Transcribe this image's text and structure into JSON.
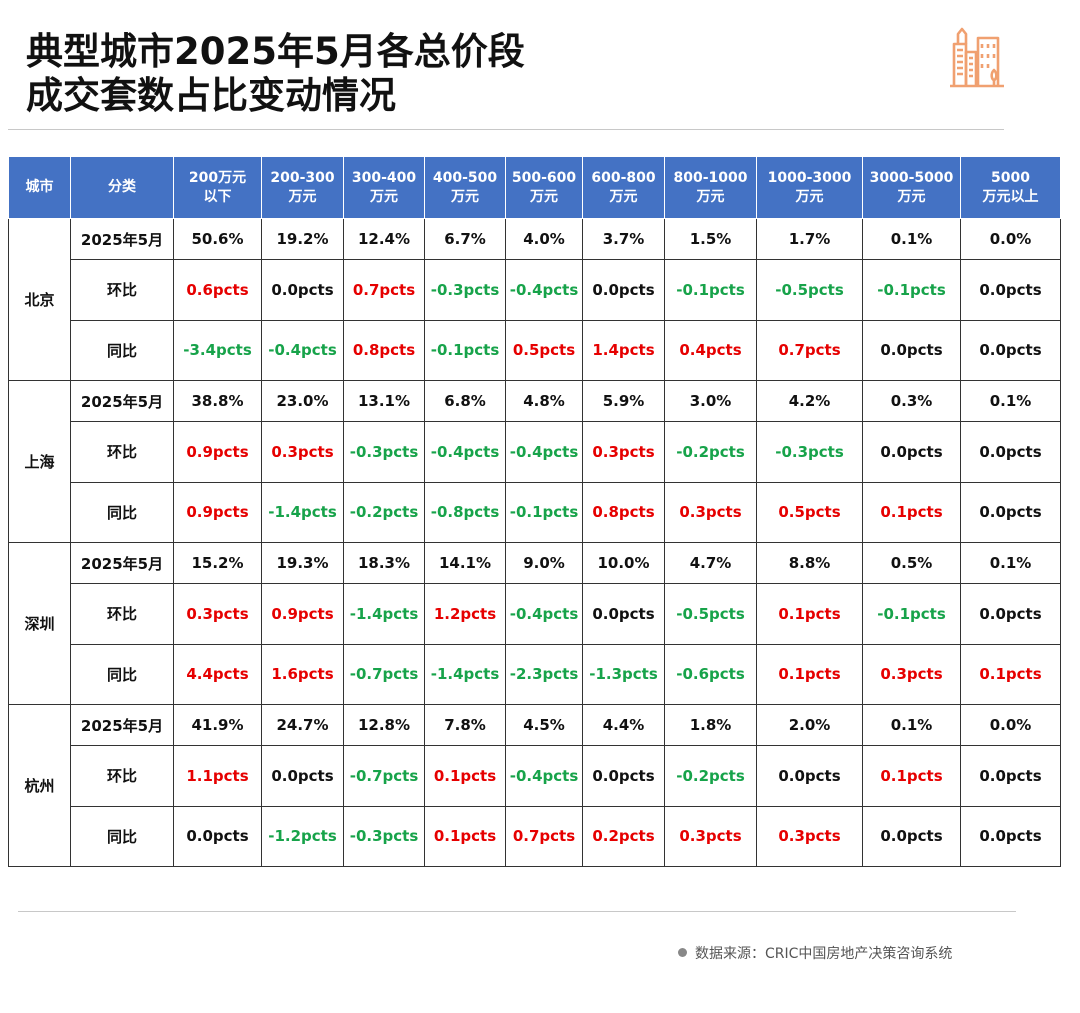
{
  "title_line1": "典型城市2025年5月各总价段",
  "title_line2": "成交套数占比变动情况",
  "headers": [
    "城市",
    "分类",
    "200万元\n以下",
    "200-300\n万元",
    "300-400\n万元",
    "400-500\n万元",
    "500-600\n万元",
    "600-800\n万元",
    "800-1000\n万元",
    "1000-3000\n万元",
    "3000-5000\n万元",
    "5000\n万元以上"
  ],
  "cities": [
    {
      "name": "北京",
      "rows": [
        {
          "label": "2025年5月",
          "values": [
            "50.6%",
            "19.2%",
            "12.4%",
            "6.7%",
            "4.0%",
            "3.7%",
            "1.5%",
            "1.7%",
            "0.1%",
            "0.0%"
          ]
        },
        {
          "label": "环比",
          "values": [
            "0.6pcts",
            "0.0pcts",
            "0.7pcts",
            "-0.3pcts",
            "-0.4pcts",
            "0.0pcts",
            "-0.1pcts",
            "-0.5pcts",
            "-0.1pcts",
            "0.0pcts"
          ]
        },
        {
          "label": "同比",
          "values": [
            "-3.4pcts",
            "-0.4pcts",
            "0.8pcts",
            "-0.1pcts",
            "0.5pcts",
            "1.4pcts",
            "0.4pcts",
            "0.7pcts",
            "0.0pcts",
            "0.0pcts"
          ]
        }
      ]
    },
    {
      "name": "上海",
      "rows": [
        {
          "label": "2025年5月",
          "values": [
            "38.8%",
            "23.0%",
            "13.1%",
            "6.8%",
            "4.8%",
            "5.9%",
            "3.0%",
            "4.2%",
            "0.3%",
            "0.1%"
          ]
        },
        {
          "label": "环比",
          "values": [
            "0.9pcts",
            "0.3pcts",
            "-0.3pcts",
            "-0.4pcts",
            "-0.4pcts",
            "0.3pcts",
            "-0.2pcts",
            "-0.3pcts",
            "0.0pcts",
            "0.0pcts"
          ]
        },
        {
          "label": "同比",
          "values": [
            "0.9pcts",
            "-1.4pcts",
            "-0.2pcts",
            "-0.8pcts",
            "-0.1pcts",
            "0.8pcts",
            "0.3pcts",
            "0.5pcts",
            "0.1pcts",
            "0.0pcts"
          ]
        }
      ]
    },
    {
      "name": "深圳",
      "rows": [
        {
          "label": "2025年5月",
          "values": [
            "15.2%",
            "19.3%",
            "18.3%",
            "14.1%",
            "9.0%",
            "10.0%",
            "4.7%",
            "8.8%",
            "0.5%",
            "0.1%"
          ]
        },
        {
          "label": "环比",
          "values": [
            "0.3pcts",
            "0.9pcts",
            "-1.4pcts",
            "1.2pcts",
            "-0.4pcts",
            "0.0pcts",
            "-0.5pcts",
            "0.1pcts",
            "-0.1pcts",
            "0.0pcts"
          ]
        },
        {
          "label": "同比",
          "values": [
            "4.4pcts",
            "1.6pcts",
            "-0.7pcts",
            "-1.4pcts",
            "-2.3pcts",
            "-1.3pcts",
            "-0.6pcts",
            "0.1pcts",
            "0.3pcts",
            "0.1pcts"
          ]
        }
      ]
    },
    {
      "name": "杭州",
      "rows": [
        {
          "label": "2025年5月",
          "values": [
            "41.9%",
            "24.7%",
            "12.8%",
            "7.8%",
            "4.5%",
            "4.4%",
            "1.8%",
            "2.0%",
            "0.1%",
            "0.0%"
          ]
        },
        {
          "label": "环比",
          "values": [
            "1.1pcts",
            "0.0pcts",
            "-0.7pcts",
            "0.1pcts",
            "-0.4pcts",
            "0.0pcts",
            "-0.2pcts",
            "0.0pcts",
            "0.1pcts",
            "0.0pcts"
          ]
        },
        {
          "label": "同比",
          "values": [
            "0.0pcts",
            "-1.2pcts",
            "-0.3pcts",
            "0.1pcts",
            "0.7pcts",
            "0.2pcts",
            "0.3pcts",
            "0.3pcts",
            "0.0pcts",
            "0.0pcts"
          ]
        }
      ]
    }
  ],
  "source": "数据来源：CRIC中国房地产决策咨询系统",
  "colors": {
    "header_bg": "#4472c4",
    "positive": "#e60000",
    "negative": "#17a34a",
    "logo": "#f0a070"
  },
  "icons": {
    "logo": "city-buildings-icon",
    "source_dot": "bullet-dot-icon"
  }
}
